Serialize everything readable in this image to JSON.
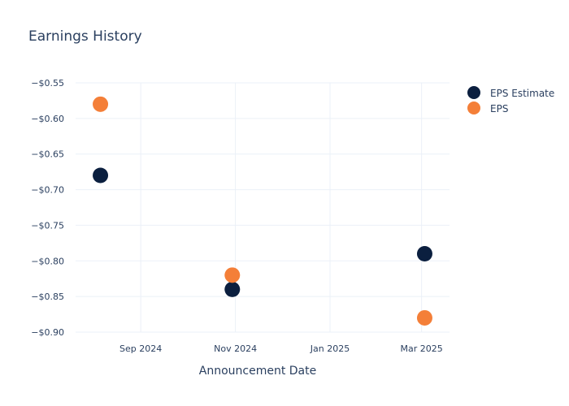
{
  "chart_data": {
    "type": "scatter",
    "title": "Earnings History",
    "xlabel": "Announcement Date",
    "ylabel": "",
    "x_ticks": [
      {
        "date": "2024-09-01",
        "label": "Sep 2024"
      },
      {
        "date": "2024-11-01",
        "label": "Nov 2024"
      },
      {
        "date": "2025-01-01",
        "label": "Jan 2025"
      },
      {
        "date": "2025-03-01",
        "label": "Mar 2025"
      }
    ],
    "xlim": [
      "2024-07-21",
      "2025-03-19"
    ],
    "y_ticks": [
      {
        "value": -0.55,
        "label": "−$0.55"
      },
      {
        "value": -0.6,
        "label": "−$0.60"
      },
      {
        "value": -0.65,
        "label": "−$0.65"
      },
      {
        "value": -0.7,
        "label": "−$0.70"
      },
      {
        "value": -0.75,
        "label": "−$0.75"
      },
      {
        "value": -0.8,
        "label": "−$0.80"
      },
      {
        "value": -0.85,
        "label": "−$0.85"
      },
      {
        "value": -0.9,
        "label": "−$0.90"
      }
    ],
    "ylim": [
      -0.9,
      -0.55
    ],
    "grid": true,
    "legend_position": "top-right",
    "series": [
      {
        "name": "EPS Estimate",
        "color": "#0b1f3f",
        "points": [
          {
            "x": "2024-08-06",
            "y": -0.68
          },
          {
            "x": "2024-10-30",
            "y": -0.84
          },
          {
            "x": "2025-03-03",
            "y": -0.79
          }
        ]
      },
      {
        "name": "EPS",
        "color": "#f47f38",
        "points": [
          {
            "x": "2024-08-06",
            "y": -0.58
          },
          {
            "x": "2024-10-30",
            "y": -0.82
          },
          {
            "x": "2025-03-03",
            "y": -0.88
          }
        ]
      }
    ]
  }
}
